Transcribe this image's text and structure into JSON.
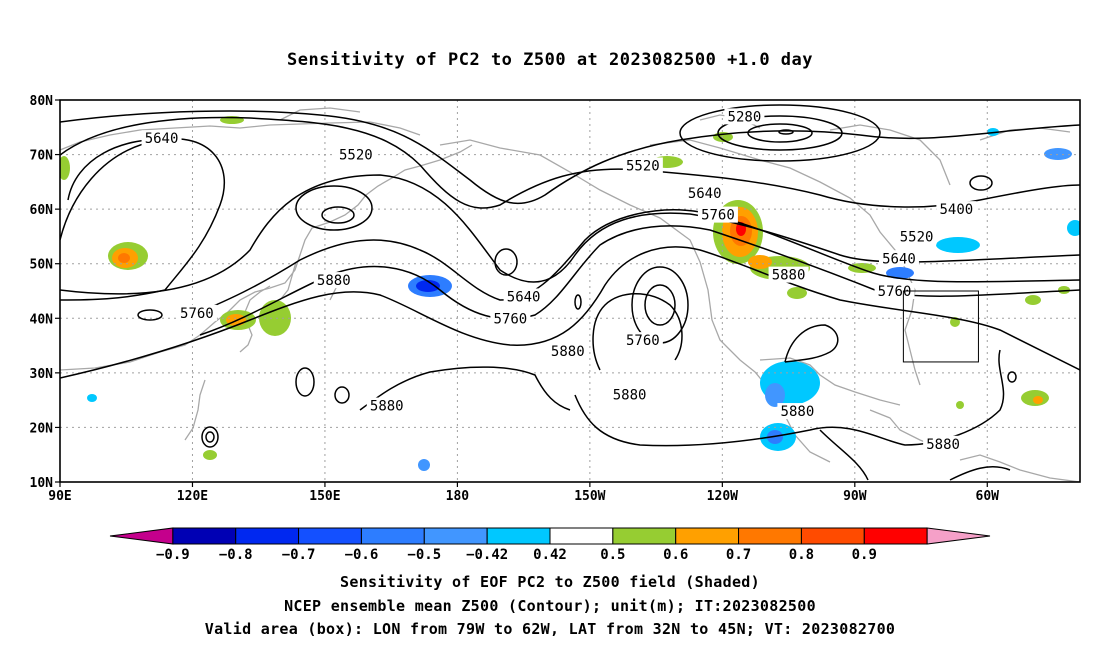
{
  "title": "Sensitivity of PC2 to Z500 at 2023082500 +1.0 day",
  "axes": {
    "lat_labels": [
      {
        "value": 80,
        "label": "80N"
      },
      {
        "value": 70,
        "label": "70N"
      },
      {
        "value": 60,
        "label": "60N"
      },
      {
        "value": 50,
        "label": "50N"
      },
      {
        "value": 40,
        "label": "40N"
      },
      {
        "value": 30,
        "label": "30N"
      },
      {
        "value": 20,
        "label": "20N"
      },
      {
        "value": 10,
        "label": "10N"
      }
    ],
    "lon_labels": [
      {
        "value": 90,
        "label": "90E"
      },
      {
        "value": 120,
        "label": "120E"
      },
      {
        "value": 150,
        "label": "150E"
      },
      {
        "value": 180,
        "label": "180"
      },
      {
        "value": 210,
        "label": "150W"
      },
      {
        "value": 240,
        "label": "120W"
      },
      {
        "value": 270,
        "label": "90W"
      },
      {
        "value": 300,
        "label": "60W"
      }
    ],
    "lon_range": [
      90,
      321
    ],
    "lat_range": [
      10,
      80
    ]
  },
  "contour_labels": [
    {
      "text": "5280",
      "lon": 245,
      "lat": 77
    },
    {
      "text": "5640",
      "lon": 113,
      "lat": 73
    },
    {
      "text": "5520",
      "lon": 157,
      "lat": 70
    },
    {
      "text": "5520",
      "lon": 222,
      "lat": 68
    },
    {
      "text": "5640",
      "lon": 236,
      "lat": 63
    },
    {
      "text": "5760",
      "lon": 239,
      "lat": 59
    },
    {
      "text": "5400",
      "lon": 293,
      "lat": 60
    },
    {
      "text": "5520",
      "lon": 284,
      "lat": 55
    },
    {
      "text": "5640",
      "lon": 280,
      "lat": 51
    },
    {
      "text": "5880",
      "lon": 255,
      "lat": 48
    },
    {
      "text": "5760",
      "lon": 279,
      "lat": 45
    },
    {
      "text": "5880",
      "lon": 152,
      "lat": 47
    },
    {
      "text": "5640",
      "lon": 195,
      "lat": 44
    },
    {
      "text": "5760",
      "lon": 192,
      "lat": 40
    },
    {
      "text": "5760",
      "lon": 121,
      "lat": 41
    },
    {
      "text": "5760",
      "lon": 222,
      "lat": 36
    },
    {
      "text": "5880",
      "lon": 205,
      "lat": 34
    },
    {
      "text": "5880",
      "lon": 164,
      "lat": 24
    },
    {
      "text": "5880",
      "lon": 219,
      "lat": 26
    },
    {
      "text": "5880",
      "lon": 257,
      "lat": 23
    },
    {
      "text": "5880",
      "lon": 290,
      "lat": 17
    }
  ],
  "valid_box": {
    "lon_min": 281,
    "lon_max": 298,
    "lat_min": 32,
    "lat_max": 45
  },
  "colorbar": {
    "colors": [
      "#c4008c",
      "#0000b4",
      "#0028f0",
      "#1450ff",
      "#2d7dff",
      "#4196ff",
      "#00c8ff",
      "#ffffff",
      "#96cd32",
      "#ffa000",
      "#ff7800",
      "#ff4b00",
      "#ff0000",
      "#f5a0c8"
    ],
    "labels": [
      "−0.9",
      "−0.8",
      "−0.7",
      "−0.6",
      "−0.5",
      "−0.42",
      "0.42",
      "0.5",
      "0.6",
      "0.7",
      "0.8",
      "0.9"
    ]
  },
  "captions": [
    "Sensitivity of EOF PC2 to Z500 field (Shaded)",
    "NCEP ensemble mean Z500 (Contour); unit(m); IT:2023082500",
    "Valid area (box): LON from 79W to 62W, LAT from 32N to 45N; VT: 2023082700"
  ]
}
